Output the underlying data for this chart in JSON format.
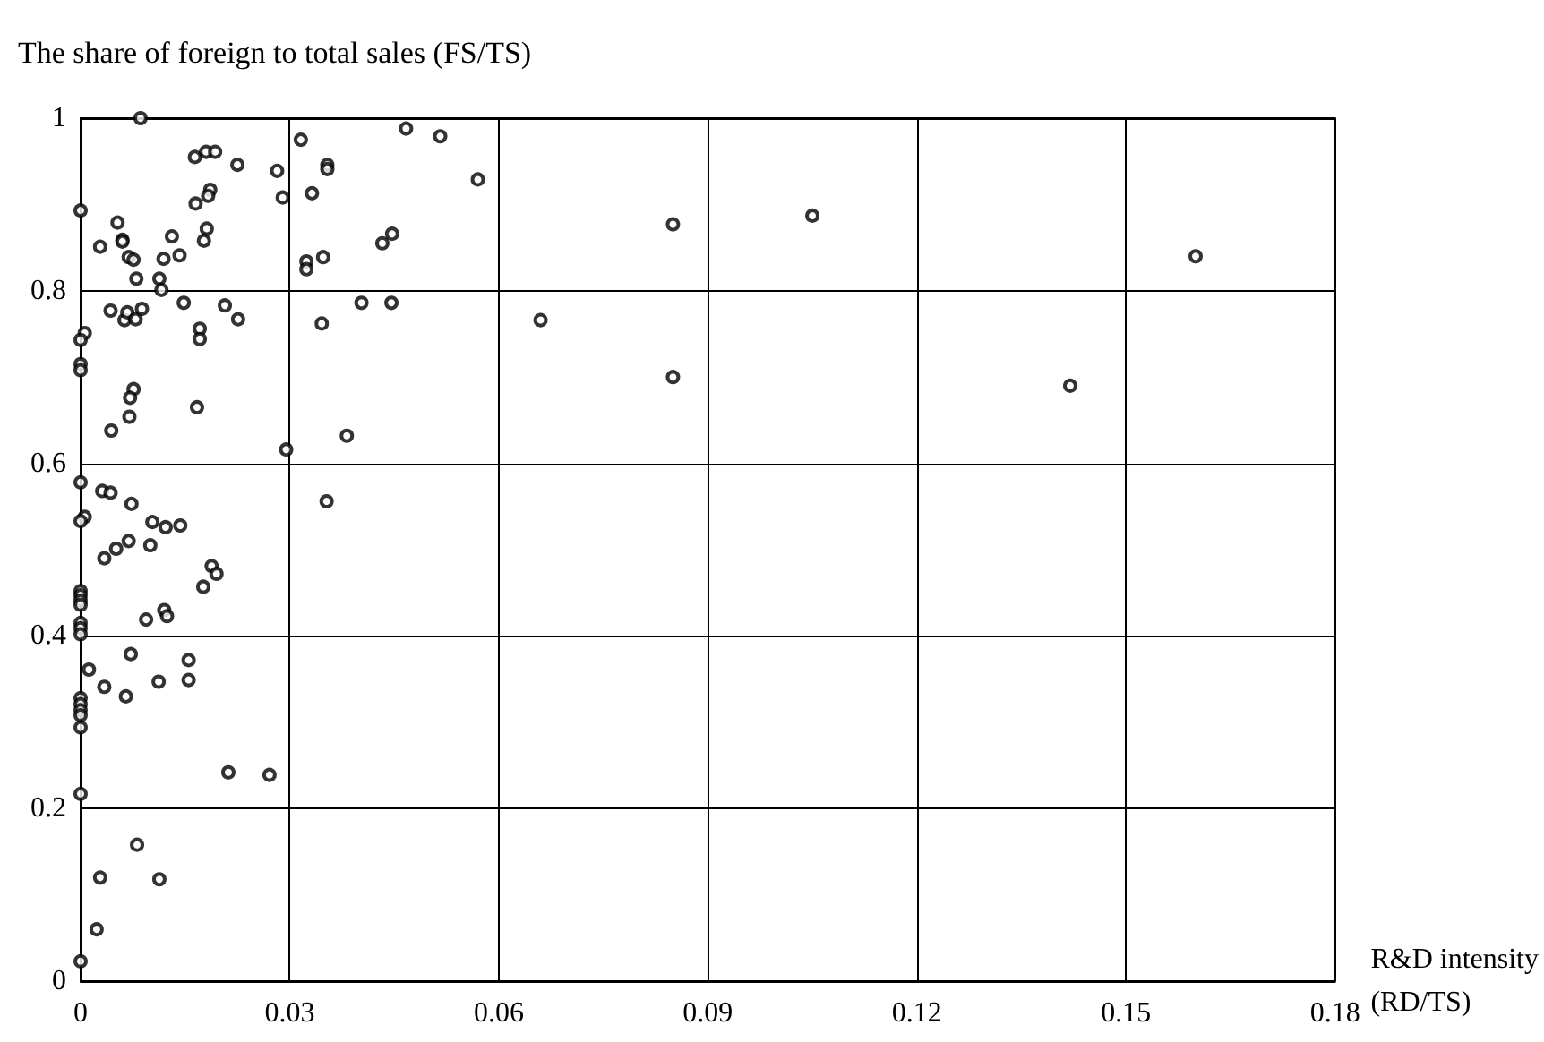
{
  "chart_data": {
    "type": "scatter",
    "xlabel": "R&D intensity (RD/TS)",
    "ylabel": "The share of foreign to total sales (FS/TS)",
    "xlim": [
      0,
      0.18
    ],
    "xticks": [
      0,
      0.03,
      0.06,
      0.09,
      0.12,
      0.15,
      0.18
    ],
    "ylim": [
      0,
      1
    ],
    "yticks": [
      0,
      0.2,
      0.4,
      0.6,
      0.8,
      1
    ],
    "grid": true,
    "marker": "circle",
    "series": [
      {
        "color": "#000000",
        "x": [
          0.0086,
          0.0164,
          0.018,
          0.0193,
          0.0225,
          0.0282,
          0.0316,
          0.0467,
          0.0516,
          0.0354,
          0.0354,
          0.029,
          0.0332,
          0.057,
          0,
          0.0186,
          0.0183,
          0.0165,
          0.0053,
          0.0028,
          0.006,
          0.006,
          0.0069,
          0.0076,
          0.0131,
          0.0181,
          0.0177,
          0.0119,
          0.0142,
          0.0433,
          0.0447,
          0.0324,
          0.0324,
          0.0348,
          0.008,
          0.0113,
          0.0116,
          0.0148,
          0.0207,
          0.0226,
          0.0403,
          0.0446,
          0.0346,
          0.066,
          0.0043,
          0.0063,
          0.0067,
          0.0079,
          0.0088,
          0.0171,
          0.0171,
          0.0006,
          0,
          0,
          0,
          0.0076,
          0.0071,
          0.007,
          0.0167,
          0.0044,
          0.0382,
          0.0295,
          0.0353,
          0,
          0.0031,
          0.0043,
          0.0073,
          0.0006,
          0,
          0.0103,
          0.0122,
          0.0143,
          0.0069,
          0.0051,
          0.0034,
          0.01,
          0.0188,
          0.0195,
          0.0176,
          0,
          0,
          0,
          0,
          0,
          0,
          0,
          0.0094,
          0.012,
          0.0124,
          0.0012,
          0.0072,
          0.0034,
          0.0065,
          0.0112,
          0.0155,
          0.0155,
          0,
          0,
          0,
          0,
          0,
          0.0212,
          0.0271,
          0,
          0.0081,
          0.0028,
          0.0113,
          0.0023,
          0,
          0.085,
          0.085,
          0.105,
          0.142,
          0.16
        ],
        "values": [
          1.0,
          0.955,
          0.961,
          0.961,
          0.946,
          0.939,
          0.975,
          0.988,
          0.979,
          0.946,
          0.941,
          0.908,
          0.913,
          0.929,
          0.893,
          0.917,
          0.91,
          0.901,
          0.879,
          0.851,
          0.859,
          0.857,
          0.839,
          0.836,
          0.863,
          0.872,
          0.858,
          0.837,
          0.841,
          0.855,
          0.866,
          0.834,
          0.825,
          0.839,
          0.814,
          0.814,
          0.801,
          0.786,
          0.783,
          0.767,
          0.786,
          0.786,
          0.762,
          0.766,
          0.777,
          0.766,
          0.775,
          0.767,
          0.779,
          0.756,
          0.744,
          0.751,
          0.743,
          0.715,
          0.708,
          0.686,
          0.676,
          0.654,
          0.665,
          0.638,
          0.632,
          0.616,
          0.556,
          0.578,
          0.568,
          0.566,
          0.553,
          0.538,
          0.533,
          0.532,
          0.526,
          0.528,
          0.51,
          0.501,
          0.49,
          0.505,
          0.481,
          0.472,
          0.457,
          0.452,
          0.447,
          0.441,
          0.436,
          0.415,
          0.409,
          0.402,
          0.419,
          0.43,
          0.423,
          0.361,
          0.379,
          0.341,
          0.33,
          0.347,
          0.372,
          0.349,
          0.328,
          0.321,
          0.314,
          0.308,
          0.294,
          0.242,
          0.239,
          0.217,
          0.158,
          0.12,
          0.118,
          0.06,
          0.023,
          0.877,
          0.7,
          0.887,
          0.69,
          0.84
        ]
      }
    ]
  }
}
